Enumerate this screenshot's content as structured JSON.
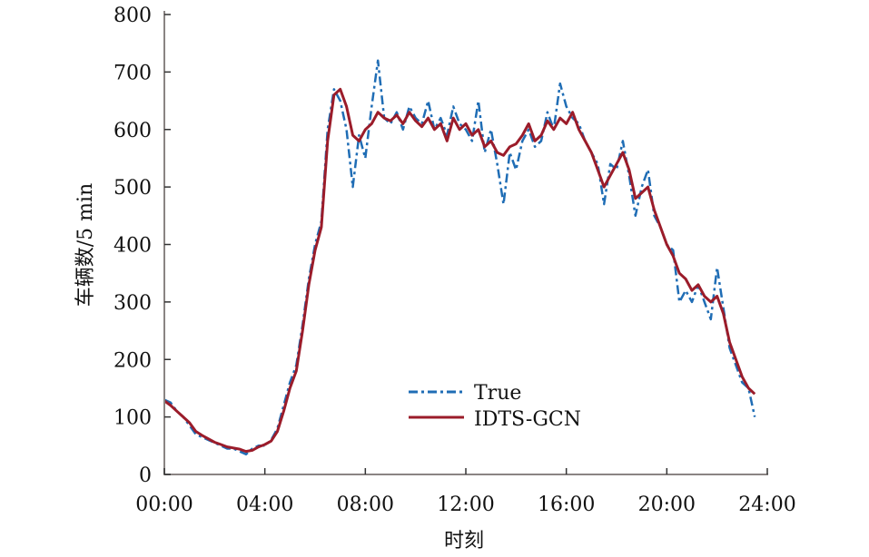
{
  "chart_data": {
    "type": "line",
    "title": "",
    "xlabel": "时刻",
    "ylabel": "车辆数/5 min",
    "xlim_hours": [
      0,
      24
    ],
    "ylim": [
      0,
      800
    ],
    "x_tick_labels": [
      "00:00",
      "04:00",
      "08:00",
      "12:00",
      "16:00",
      "20:00",
      "24:00"
    ],
    "y_tick_labels": [
      "0",
      "100",
      "200",
      "300",
      "400",
      "500",
      "600",
      "700",
      "800"
    ],
    "legend_position": "lower-center",
    "x_step_minutes": 15,
    "series": [
      {
        "name": "True",
        "color": "#1f6db5",
        "style": "dash-dot",
        "values": [
          130,
          125,
          110,
          100,
          85,
          70,
          65,
          60,
          55,
          50,
          45,
          45,
          40,
          35,
          45,
          50,
          50,
          60,
          80,
          120,
          160,
          190,
          260,
          340,
          400,
          440,
          600,
          670,
          650,
          600,
          500,
          590,
          550,
          640,
          720,
          620,
          610,
          630,
          600,
          640,
          620,
          610,
          650,
          600,
          620,
          590,
          640,
          610,
          600,
          580,
          650,
          560,
          600,
          540,
          470,
          560,
          530,
          580,
          600,
          570,
          580,
          630,
          600,
          680,
          640,
          620,
          610,
          580,
          560,
          540,
          470,
          540,
          530,
          580,
          520,
          450,
          500,
          530,
          450,
          430,
          400,
          390,
          300,
          320,
          300,
          330,
          300,
          270,
          360,
          290,
          220,
          190,
          160,
          150,
          100
        ]
      },
      {
        "name": "IDTS-GCN",
        "color": "#9b1c2a",
        "style": "solid",
        "values": [
          128,
          120,
          110,
          100,
          90,
          75,
          68,
          62,
          56,
          52,
          48,
          46,
          44,
          40,
          42,
          48,
          52,
          58,
          75,
          110,
          150,
          180,
          250,
          330,
          390,
          430,
          580,
          660,
          670,
          640,
          590,
          580,
          600,
          610,
          630,
          620,
          615,
          625,
          610,
          630,
          615,
          605,
          620,
          600,
          610,
          580,
          620,
          600,
          610,
          590,
          600,
          570,
          580,
          560,
          555,
          570,
          575,
          590,
          610,
          580,
          590,
          615,
          600,
          620,
          610,
          630,
          600,
          580,
          560,
          530,
          500,
          520,
          540,
          560,
          530,
          480,
          490,
          500,
          460,
          430,
          400,
          380,
          350,
          340,
          320,
          330,
          310,
          300,
          310,
          280,
          230,
          200,
          170,
          150,
          140
        ]
      }
    ]
  }
}
